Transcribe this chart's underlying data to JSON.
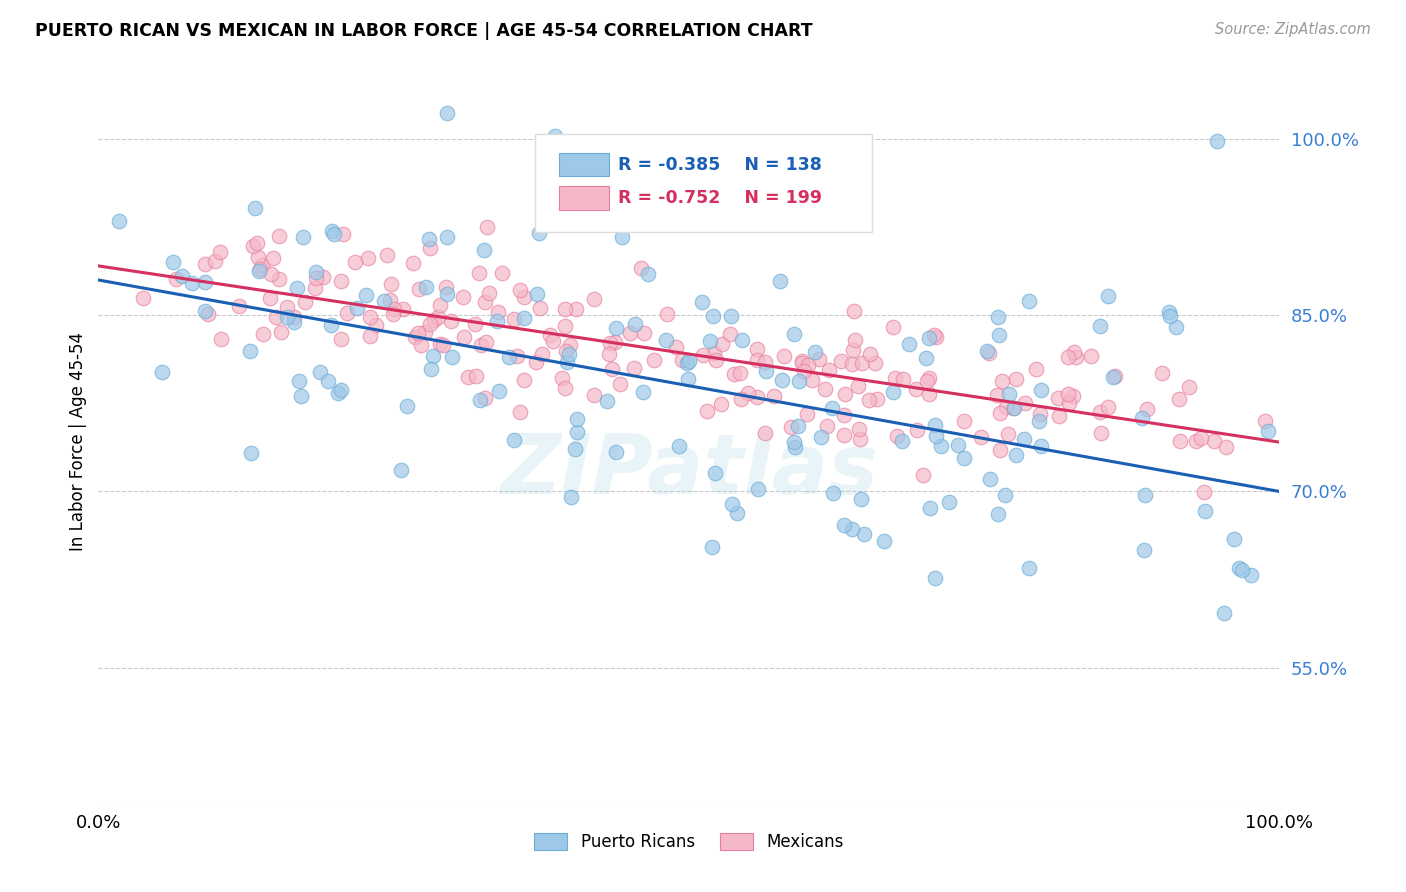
{
  "title": "PUERTO RICAN VS MEXICAN IN LABOR FORCE | AGE 45-54 CORRELATION CHART",
  "source": "Source: ZipAtlas.com",
  "ylabel": "In Labor Force | Age 45-54",
  "ytick_labels": [
    "55.0%",
    "70.0%",
    "85.0%",
    "100.0%"
  ],
  "ytick_values": [
    0.55,
    0.7,
    0.85,
    1.0
  ],
  "xlim": [
    0.0,
    1.0
  ],
  "ylim": [
    0.435,
    1.05
  ],
  "watermark": "ZIPatlas",
  "legend_blue_r": "-0.385",
  "legend_blue_n": "138",
  "legend_pink_r": "-0.752",
  "legend_pink_n": "199",
  "blue_color": "#9ec8e8",
  "pink_color": "#f5b8c8",
  "blue_edge_color": "#6aadd5",
  "pink_edge_color": "#e87fa0",
  "blue_line_color": "#1a5fb4",
  "pink_line_color": "#d63060",
  "blue_scatter_alpha": 0.7,
  "pink_scatter_alpha": 0.7,
  "marker_size": 110,
  "blue_trend_start_y": 0.88,
  "blue_trend_end_y": 0.7,
  "pink_trend_start_y": 0.892,
  "pink_trend_end_y": 0.742,
  "background_color": "#ffffff",
  "grid_color": "#bbbbbb",
  "ytick_color": "#3a7fd4",
  "n_blue": 138,
  "n_pink": 199
}
